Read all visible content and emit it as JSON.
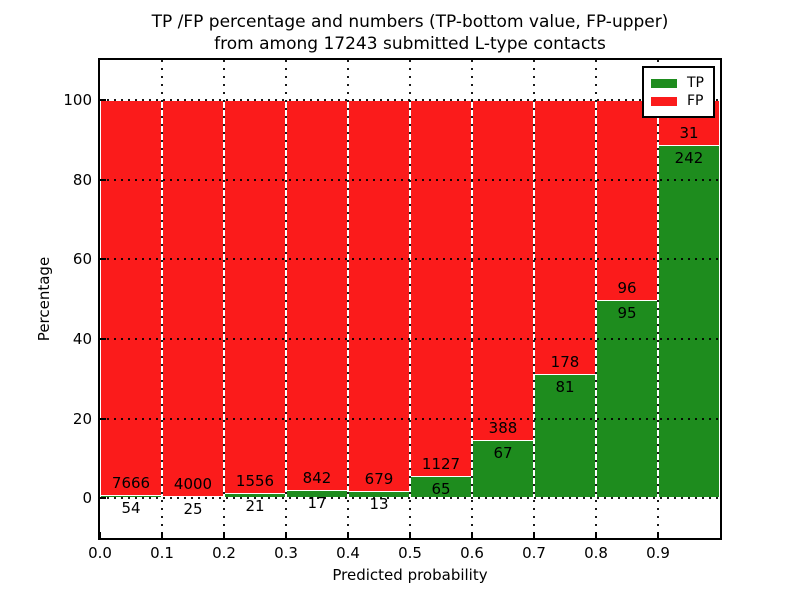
{
  "title": {
    "line1": "TP /FP percentage and numbers (TP-bottom value, FP-upper)",
    "line2": "from among 17243 submitted L-type contacts"
  },
  "axes": {
    "xlabel": "Predicted probability",
    "ylabel": "Percentage",
    "xtick_labels": [
      "0.0",
      "0.1",
      "0.2",
      "0.3",
      "0.4",
      "0.5",
      "0.6",
      "0.7",
      "0.8",
      "0.9"
    ],
    "ytick_labels": [
      "0",
      "20",
      "40",
      "60",
      "80",
      "100"
    ],
    "ylim": [
      -10,
      110
    ]
  },
  "legend": {
    "items": [
      {
        "label": "TP",
        "color": "#1e8c1e"
      },
      {
        "label": "FP",
        "color": "#fb1b1b"
      }
    ]
  },
  "colors": {
    "tp_green": "#1e8c1e",
    "fp_red": "#fb1b1b",
    "bar_edge": "#ffffff",
    "grid": "#000000",
    "background": "#ffffff"
  },
  "chart_data": {
    "type": "bar",
    "stacked": true,
    "normalized_to_percent": true,
    "title": "TP /FP percentage and numbers (TP-bottom value, FP-upper) from among 17243 submitted L-type contacts",
    "xlabel": "Predicted probability",
    "ylabel": "Percentage",
    "total_contacts": 17243,
    "bin_edges": [
      0.0,
      0.1,
      0.2,
      0.3,
      0.4,
      0.5,
      0.6,
      0.7,
      0.8,
      0.9,
      1.0
    ],
    "categories": [
      "0.0-0.1",
      "0.1-0.2",
      "0.2-0.3",
      "0.3-0.4",
      "0.4-0.5",
      "0.5-0.6",
      "0.6-0.7",
      "0.7-0.8",
      "0.8-0.9",
      "0.9-1.0"
    ],
    "series": [
      {
        "name": "TP",
        "color": "#1e8c1e",
        "counts": [
          54,
          25,
          21,
          17,
          13,
          65,
          67,
          81,
          95,
          242
        ]
      },
      {
        "name": "FP",
        "color": "#fb1b1b",
        "counts": [
          7666,
          4000,
          1556,
          842,
          679,
          1127,
          388,
          178,
          96,
          31
        ]
      }
    ],
    "tp_percent": [
      0.7,
      0.62,
      1.33,
      1.98,
      1.88,
      5.45,
      14.73,
      31.27,
      49.74,
      88.64
    ],
    "ylim": [
      -10,
      110
    ],
    "yticks": [
      0,
      20,
      40,
      60,
      80,
      100
    ],
    "grid": true,
    "legend_position": "upper right"
  }
}
